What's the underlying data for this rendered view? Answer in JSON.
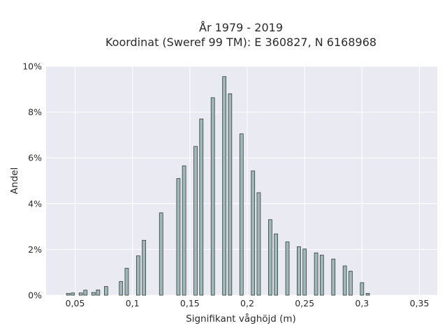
{
  "chart_data": {
    "type": "bar",
    "title": "År 1979 - 2019",
    "subtitle": "Koordinat (Sweref 99 TM): E 360827, N 6168968",
    "xlabel": "Signifikant våghöjd (m)",
    "ylabel": "Andel",
    "xlim": [
      0.03,
      0.36
    ],
    "ylim": [
      0,
      0.1
    ],
    "xticks": [
      {
        "value": 0.05,
        "label": "0,05"
      },
      {
        "value": 0.1,
        "label": "0,1"
      },
      {
        "value": 0.15,
        "label": "0,15"
      },
      {
        "value": 0.2,
        "label": "0,2"
      },
      {
        "value": 0.25,
        "label": "0,25"
      },
      {
        "value": 0.3,
        "label": "0,3"
      },
      {
        "value": 0.35,
        "label": "0,35"
      }
    ],
    "yticks": [
      {
        "value": 0.0,
        "label": "0%"
      },
      {
        "value": 0.02,
        "label": "2%"
      },
      {
        "value": 0.04,
        "label": "4%"
      },
      {
        "value": 0.06,
        "label": "6%"
      },
      {
        "value": 0.08,
        "label": "8%"
      },
      {
        "value": 0.1,
        "label": "10%"
      }
    ],
    "grid": true,
    "bin_width": 0.003,
    "bars": [
      {
        "x": 0.044,
        "y": 0.0008
      },
      {
        "x": 0.048,
        "y": 0.001
      },
      {
        "x": 0.055,
        "y": 0.001
      },
      {
        "x": 0.059,
        "y": 0.0022
      },
      {
        "x": 0.066,
        "y": 0.0012
      },
      {
        "x": 0.07,
        "y": 0.0023
      },
      {
        "x": 0.077,
        "y": 0.0038
      },
      {
        "x": 0.09,
        "y": 0.006
      },
      {
        "x": 0.095,
        "y": 0.0118
      },
      {
        "x": 0.105,
        "y": 0.0172
      },
      {
        "x": 0.11,
        "y": 0.024
      },
      {
        "x": 0.125,
        "y": 0.036
      },
      {
        "x": 0.14,
        "y": 0.051
      },
      {
        "x": 0.145,
        "y": 0.0565
      },
      {
        "x": 0.155,
        "y": 0.065
      },
      {
        "x": 0.16,
        "y": 0.077
      },
      {
        "x": 0.17,
        "y": 0.0863
      },
      {
        "x": 0.18,
        "y": 0.0955
      },
      {
        "x": 0.185,
        "y": 0.088
      },
      {
        "x": 0.195,
        "y": 0.0705
      },
      {
        "x": 0.205,
        "y": 0.0543
      },
      {
        "x": 0.21,
        "y": 0.0448
      },
      {
        "x": 0.22,
        "y": 0.033
      },
      {
        "x": 0.225,
        "y": 0.0268
      },
      {
        "x": 0.235,
        "y": 0.0233
      },
      {
        "x": 0.245,
        "y": 0.0212
      },
      {
        "x": 0.25,
        "y": 0.0202
      },
      {
        "x": 0.26,
        "y": 0.0185
      },
      {
        "x": 0.265,
        "y": 0.0175
      },
      {
        "x": 0.275,
        "y": 0.0158
      },
      {
        "x": 0.285,
        "y": 0.0128
      },
      {
        "x": 0.29,
        "y": 0.0105
      },
      {
        "x": 0.3,
        "y": 0.0055
      },
      {
        "x": 0.305,
        "y": 0.0008
      }
    ]
  },
  "colors": {
    "plot_background": "#eaeaf2",
    "bar_fill": "#a0b8b8",
    "bar_edge": "#2f3d3d",
    "grid": "#ffffff"
  }
}
